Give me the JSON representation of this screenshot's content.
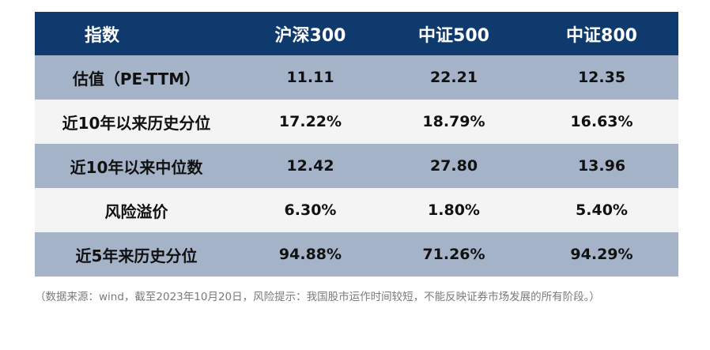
{
  "table": {
    "headers": [
      "指数",
      "沪深300",
      "中证500",
      "中证800"
    ],
    "rows": [
      [
        "估值（PE-TTM）",
        "11.11",
        "22.21",
        "12.35"
      ],
      [
        "近10年以来历史分位",
        "17.22%",
        "18.79%",
        "16.63%"
      ],
      [
        "近10年以来中位数",
        "12.42",
        "27.80",
        "13.96"
      ],
      [
        "风险溢价",
        "6.30%",
        "1.80%",
        "5.40%"
      ],
      [
        "近5年来历史分位",
        "94.88%",
        "71.26%",
        "94.29%"
      ]
    ]
  },
  "footnote": "（数据来源：wind，截至2023年10月20日，风险提示：我国股市运作时间较短，不能反映证券市场发展的所有阶段。）",
  "colors": {
    "header_bg": "#0e3a6e",
    "shaded_row": "#a5b3c9",
    "plain_row": "#f4f4f4"
  }
}
